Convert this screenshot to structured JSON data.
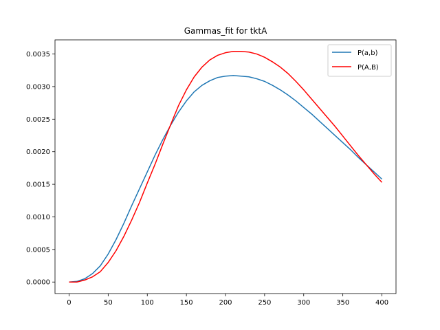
{
  "chart_data": {
    "type": "line",
    "title": "Gammas_fit for tktA",
    "xlabel": "",
    "ylabel": "",
    "xlim": [
      -18,
      418
    ],
    "ylim": [
      -0.000177,
      0.003717
    ],
    "xticks": [
      0,
      50,
      100,
      150,
      200,
      250,
      300,
      350,
      400
    ],
    "xtick_labels": [
      "0",
      "50",
      "100",
      "150",
      "200",
      "250",
      "300",
      "350",
      "400"
    ],
    "yticks": [
      0,
      0.0005,
      0.001,
      0.0015,
      0.002,
      0.0025,
      0.003,
      0.0035
    ],
    "ytick_labels": [
      "0.0000",
      "0.0005",
      "0.0010",
      "0.0015",
      "0.0020",
      "0.0025",
      "0.0030",
      "0.0035"
    ],
    "grid": false,
    "legend_position": "top-right",
    "series": [
      {
        "name": "P(a,b)",
        "color": "#1f77b4",
        "x": [
          0,
          10,
          20,
          30,
          40,
          50,
          60,
          70,
          80,
          90,
          100,
          110,
          120,
          130,
          140,
          150,
          160,
          170,
          180,
          190,
          200,
          210,
          220,
          230,
          240,
          250,
          260,
          270,
          280,
          290,
          300,
          310,
          320,
          330,
          340,
          350,
          360,
          370,
          380,
          390,
          400
        ],
        "y": [
          0.0,
          1e-05,
          5e-05,
          0.00013,
          0.00025,
          0.00043,
          0.00065,
          0.0009,
          0.00117,
          0.00143,
          0.00169,
          0.00195,
          0.00219,
          0.00241,
          0.00261,
          0.00278,
          0.00292,
          0.00302,
          0.00309,
          0.00314,
          0.00316,
          0.00317,
          0.00316,
          0.00315,
          0.00312,
          0.00308,
          0.00302,
          0.00295,
          0.00287,
          0.00278,
          0.00268,
          0.00258,
          0.00247,
          0.00236,
          0.00225,
          0.00214,
          0.00203,
          0.00191,
          0.0018,
          0.00169,
          0.00158
        ]
      },
      {
        "name": "P(A,B)",
        "color": "#ff0000",
        "x": [
          0,
          10,
          20,
          30,
          40,
          50,
          60,
          70,
          80,
          90,
          100,
          110,
          120,
          130,
          140,
          150,
          160,
          170,
          180,
          190,
          200,
          210,
          220,
          230,
          240,
          250,
          260,
          270,
          280,
          290,
          300,
          310,
          320,
          330,
          340,
          350,
          360,
          370,
          380,
          390,
          400
        ],
        "y": [
          0.0,
          0.0,
          3e-05,
          8e-05,
          0.00016,
          0.0003,
          0.00048,
          0.0007,
          0.00095,
          0.00122,
          0.00152,
          0.00181,
          0.00212,
          0.00242,
          0.00271,
          0.00295,
          0.00315,
          0.0033,
          0.00341,
          0.00348,
          0.00352,
          0.00354,
          0.00354,
          0.00353,
          0.0035,
          0.00345,
          0.00338,
          0.0033,
          0.0032,
          0.00308,
          0.00295,
          0.00281,
          0.00267,
          0.00253,
          0.00239,
          0.00224,
          0.00209,
          0.00194,
          0.0018,
          0.00166,
          0.00153
        ]
      }
    ]
  }
}
